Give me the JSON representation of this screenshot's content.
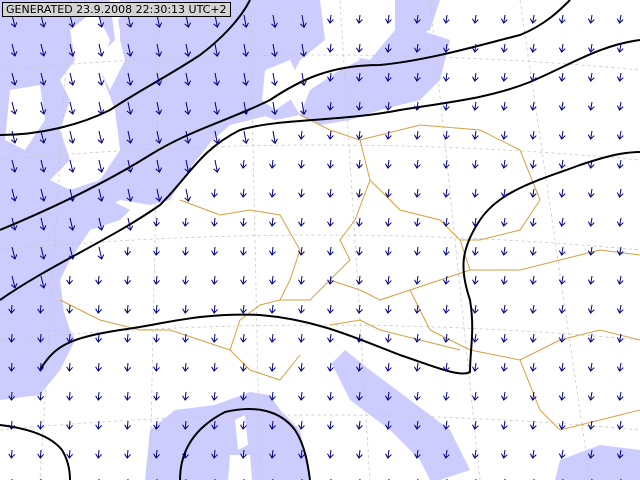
{
  "stamp": {
    "text": "GENERATED 23.9.2008 22:30:13 UTC+2"
  },
  "colors": {
    "land": "#ffffff",
    "sea": "#ccccff",
    "borders": "#d4a040",
    "contours": "#000000",
    "wind_arrows": "#000080",
    "graticule": "#c8c8c8"
  },
  "layers": [
    "sea",
    "land",
    "borders",
    "graticule",
    "isolines",
    "wind-arrows"
  ]
}
